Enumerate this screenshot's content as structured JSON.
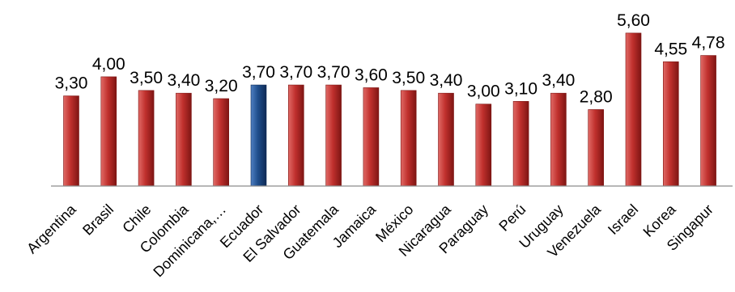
{
  "chart_data": {
    "type": "bar",
    "title": "",
    "xlabel": "",
    "ylabel": "",
    "ylim": [
      0,
      6.1
    ],
    "grid": false,
    "legend": "none",
    "categories": [
      "Argentina",
      "Brasil",
      "Chile",
      "Colombia",
      "Dominicana,…",
      "Ecuador",
      "El Salvador",
      "Guatemala",
      "Jamaica",
      "México",
      "Nicaragua",
      "Paraguay",
      "Perú",
      "Uruguay",
      "Venezuela",
      "Israel",
      "Korea",
      "Singapur"
    ],
    "values": [
      3.3,
      4.0,
      3.5,
      3.4,
      3.2,
      3.7,
      3.7,
      3.7,
      3.6,
      3.5,
      3.4,
      3.0,
      3.1,
      3.4,
      2.8,
      5.6,
      4.55,
      4.78
    ],
    "value_labels": [
      "3,30",
      "4,00",
      "3,50",
      "3,40",
      "3,20",
      "3,70",
      "3,70",
      "3,70",
      "3,60",
      "3,50",
      "3,40",
      "3,00",
      "3,10",
      "3,40",
      "2,80",
      "5,60",
      "4,55",
      "4,78"
    ],
    "highlight_index": 5,
    "colors": {
      "bar": "#c0302d",
      "bar_light": "#e06a66",
      "bar_dark": "#7e1513",
      "highlight": "#1f4e8c",
      "highlight_light": "#4f7fc2",
      "highlight_dark": "#0e2a55",
      "axis": "#8c8c8c"
    }
  }
}
